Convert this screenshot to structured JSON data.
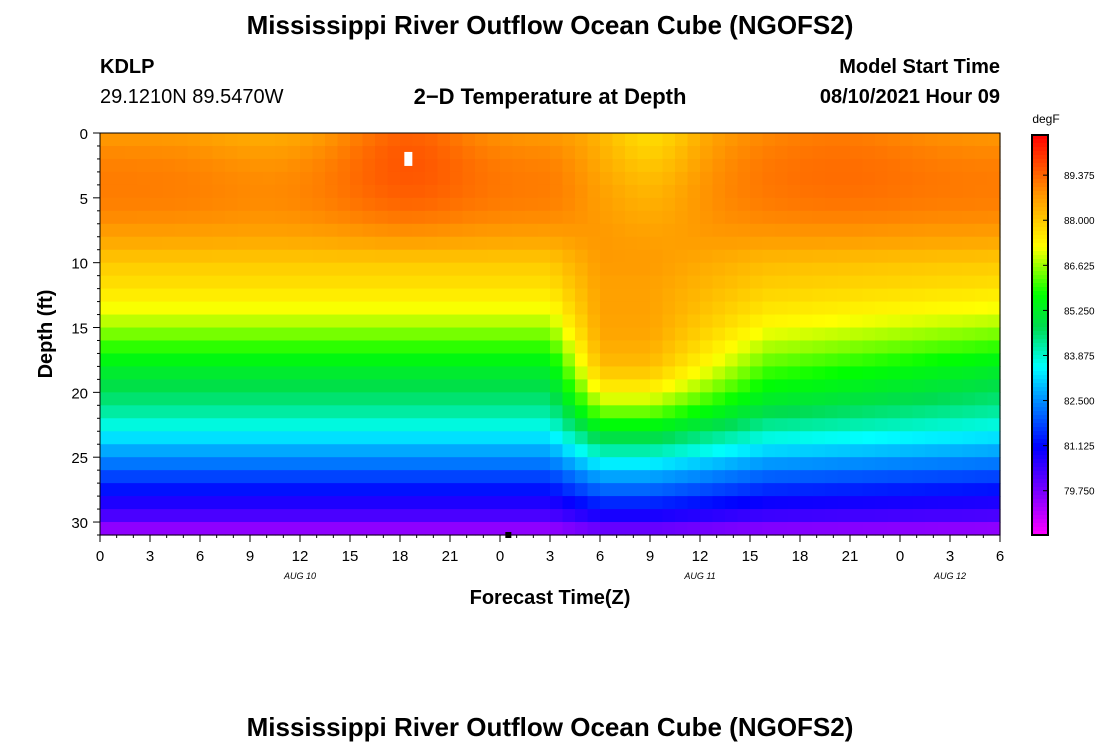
{
  "header": {
    "title_top": "Mississippi River Outflow Ocean Cube (NGOFS2)",
    "title_bottom": "Mississippi River Outflow Ocean Cube (NGOFS2)",
    "station": "KDLP",
    "location": "29.1210N  89.5470W",
    "subtitle": "2−D Temperature at Depth",
    "model_start_label": "Model Start Time",
    "model_start_value": "08/10/2021 Hour 09"
  },
  "chart_data": {
    "type": "heatmap",
    "title": "2−D Temperature at Depth",
    "xlabel": "Forecast Time(Z)",
    "ylabel": "Depth (ft)",
    "xlim": [
      0,
      54
    ],
    "ylim": [
      0,
      31
    ],
    "x_ticks": [
      "0",
      "3",
      "6",
      "9",
      "12",
      "15",
      "18",
      "21",
      "0",
      "3",
      "6",
      "9",
      "12",
      "15",
      "18",
      "21",
      "0",
      "3",
      "6"
    ],
    "x_tick_values": [
      0,
      3,
      6,
      9,
      12,
      15,
      18,
      21,
      24,
      27,
      30,
      33,
      36,
      39,
      42,
      45,
      48,
      51,
      54
    ],
    "date_labels": [
      {
        "text": "AUG 10",
        "x": 12
      },
      {
        "text": "AUG 11",
        "x": 36
      },
      {
        "text": "AUG 12",
        "x": 51
      }
    ],
    "y_ticks": [
      "0",
      "5",
      "10",
      "15",
      "20",
      "25",
      "30"
    ],
    "y_tick_values": [
      0,
      5,
      10,
      15,
      20,
      25,
      30
    ],
    "colorbar": {
      "unit": "degF",
      "min": 78.4,
      "max": 90.6,
      "tick_labels": [
        "89.375",
        "88.000",
        "86.625",
        "85.250",
        "83.875",
        "82.500",
        "81.125",
        "79.750"
      ],
      "tick_values": [
        89.375,
        88.0,
        86.625,
        85.25,
        83.875,
        82.5,
        81.125,
        79.75
      ]
    },
    "depth_profile_ft": [
      0,
      2,
      4,
      6,
      8,
      10,
      12,
      14,
      16,
      18,
      20,
      22,
      24,
      26,
      28,
      30,
      31
    ],
    "temp_calm_degF": [
      88.7,
      89.0,
      89.1,
      89.0,
      88.6,
      88.0,
      87.6,
      87.0,
      86.2,
      85.3,
      84.7,
      84.0,
      83.0,
      82.0,
      81.0,
      80.0,
      79.0
    ],
    "temp_mixed_degF": [
      88.6,
      88.7,
      88.8,
      88.8,
      88.8,
      88.7,
      88.6,
      88.6,
      88.5,
      88.2,
      87.3,
      86.0,
      84.5,
      83.0,
      81.8,
      80.5,
      79.4
    ],
    "markers": [
      {
        "type": "white",
        "x": 18.5,
        "depth": 2
      },
      {
        "type": "black",
        "x": 24.5,
        "depth": 31
      }
    ]
  }
}
